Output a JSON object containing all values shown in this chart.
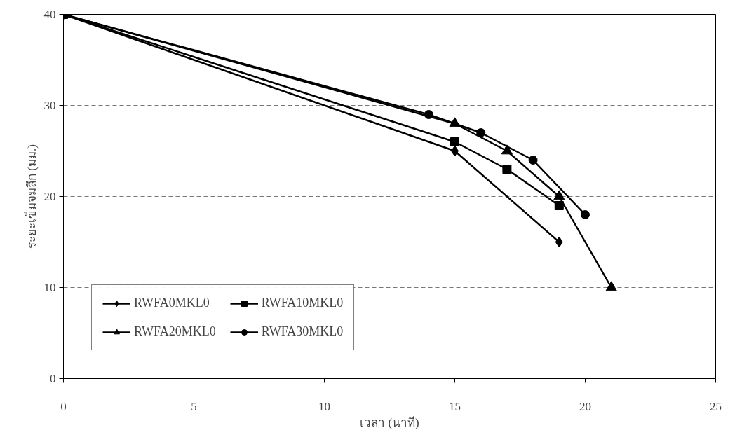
{
  "chart_data": {
    "type": "line",
    "xlabel": "เวลา (นาที)",
    "ylabel": "ระยะเข็มจมลึก (มม.)",
    "xlim": [
      0,
      25
    ],
    "ylim": [
      0,
      40
    ],
    "xticks": [
      0,
      5,
      10,
      15,
      20,
      25
    ],
    "yticks": [
      0,
      10,
      20,
      30,
      40
    ],
    "grid": "y",
    "legend": "bottom left",
    "line_style": "solid",
    "series": [
      {
        "name": "RWFA0MKL0",
        "color": "#000000",
        "marker": "diamond",
        "x": [
          0,
          15,
          19
        ],
        "values": [
          40,
          25,
          15
        ]
      },
      {
        "name": "RWFA10MKL0",
        "color": "#000000",
        "marker": "square",
        "x": [
          0,
          15,
          17,
          19
        ],
        "values": [
          40,
          26,
          23,
          19
        ]
      },
      {
        "name": "RWFA20MKL0",
        "color": "#000000",
        "marker": "triangle",
        "x": [
          0,
          15,
          17,
          19,
          21
        ],
        "values": [
          40,
          28,
          25,
          20,
          10
        ]
      },
      {
        "name": "RWFA30MKL0",
        "color": "#000000",
        "marker": "circle",
        "x": [
          0,
          14,
          16,
          18,
          20
        ],
        "values": [
          40,
          29,
          27,
          24,
          18
        ]
      }
    ]
  }
}
